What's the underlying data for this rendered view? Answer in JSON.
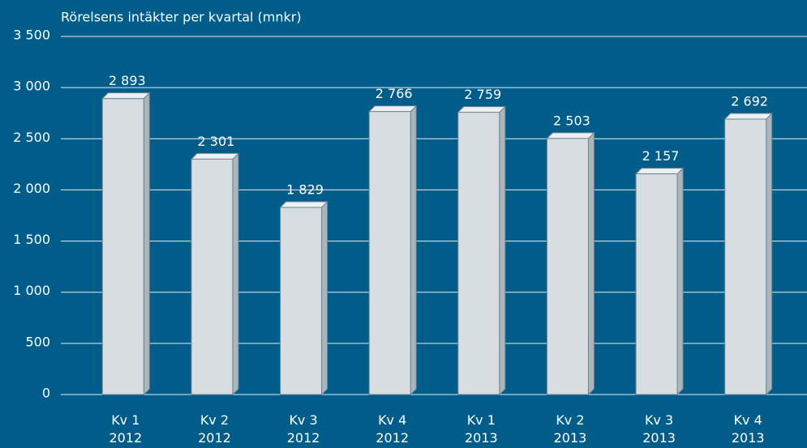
{
  "chart_data": {
    "type": "bar",
    "title": "Rörelsens intäkter per kvartal (mnkr)",
    "categories": [
      "Kv 1 2012",
      "Kv 2 2012",
      "Kv 3 2012",
      "Kv 4 2012",
      "Kv 1 2013",
      "Kv 2 2013",
      "Kv 3 2013",
      "Kv 4 2013"
    ],
    "values": [
      2893,
      2301,
      1829,
      2766,
      2759,
      2503,
      2157,
      2692
    ],
    "value_labels": [
      "2 893",
      "2 301",
      "1 829",
      "2 766",
      "2 759",
      "2 503",
      "2 157",
      "2 692"
    ],
    "color": "#d8dde1",
    "ylim": [
      0,
      3500
    ],
    "yticks": [
      0,
      500,
      {
        "value": 1000,
        "label": "1 000"
      },
      {
        "value": 1500,
        "label": "1 500"
      },
      {
        "value": 2000,
        "label": "2 000"
      },
      {
        "value": 2500,
        "label": "2 500"
      },
      {
        "value": 3000,
        "label": "3 000"
      },
      {
        "value": 3500,
        "label": "3 500"
      }
    ],
    "grid": true
  }
}
